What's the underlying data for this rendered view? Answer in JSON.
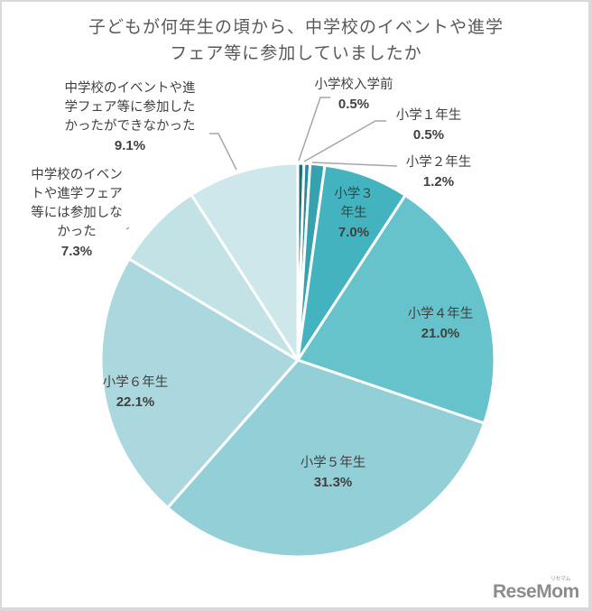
{
  "chart_data": {
    "type": "pie",
    "title": "子どもが何年生の頃から、中学校のイベントや進学フェア等に参加していましたか",
    "title_lines": [
      "子どもが何年生の頃から、中学校のイベントや進学",
      "フェア等に参加していましたか"
    ],
    "start_angle": "top (12 o'clock), clockwise",
    "slices": [
      {
        "label": "小学校入学前",
        "value": 0.5,
        "pct_text": "0.5%",
        "color": "#1f6e7a"
      },
      {
        "label": "小学１年生",
        "value": 0.5,
        "pct_text": "0.5%",
        "color": "#278c99"
      },
      {
        "label": "小学２年生",
        "value": 1.2,
        "pct_text": "1.2%",
        "color": "#35a2ae"
      },
      {
        "label": "小学３年生",
        "value": 7.0,
        "pct_text": "7.0%",
        "color": "#43b4bf"
      },
      {
        "label": "小学４年生",
        "value": 21.0,
        "pct_text": "21.0%",
        "color": "#66c3cc"
      },
      {
        "label": "小学５年生",
        "value": 31.3,
        "pct_text": "31.3%",
        "color": "#93cfd6"
      },
      {
        "label": "小学６年生",
        "value": 22.1,
        "pct_text": "22.1%",
        "color": "#abd8de"
      },
      {
        "label": "中学校のイベントや進学フェア等には参加しなかった",
        "value": 7.3,
        "pct_text": "7.3%",
        "color": "#c2e2e6"
      },
      {
        "label": "中学校のイベントや進学フェア等に参加したかったができなかった",
        "value": 9.1,
        "pct_text": "9.1%",
        "color": "#cde7ea"
      }
    ],
    "legend": "none (data labels on/around slices)"
  },
  "labels": {
    "s0": {
      "lines": [
        "小学校入学前"
      ],
      "pct": "0.5%"
    },
    "s1": {
      "lines": [
        "小学１年生"
      ],
      "pct": "0.5%"
    },
    "s2": {
      "lines": [
        "小学２年生"
      ],
      "pct": "1.2%"
    },
    "s3": {
      "lines": [
        "小学３",
        "年生"
      ],
      "pct": "7.0%"
    },
    "s4": {
      "lines": [
        "小学４年生"
      ],
      "pct": "21.0%"
    },
    "s5": {
      "lines": [
        "小学５年生"
      ],
      "pct": "31.3%"
    },
    "s6": {
      "lines": [
        "小学６年生"
      ],
      "pct": "22.1%"
    },
    "s7": {
      "lines": [
        "中学校のイベン",
        "トや進学フェア",
        "等には参加しな",
        "かった"
      ],
      "pct": "7.3%"
    },
    "s8": {
      "lines": [
        "中学校のイベントや進",
        "学フェア等に参加した",
        "かったができなかった"
      ],
      "pct": "9.1%"
    }
  },
  "logo": {
    "text": "ReseMom",
    "subtext": "リセマム"
  }
}
